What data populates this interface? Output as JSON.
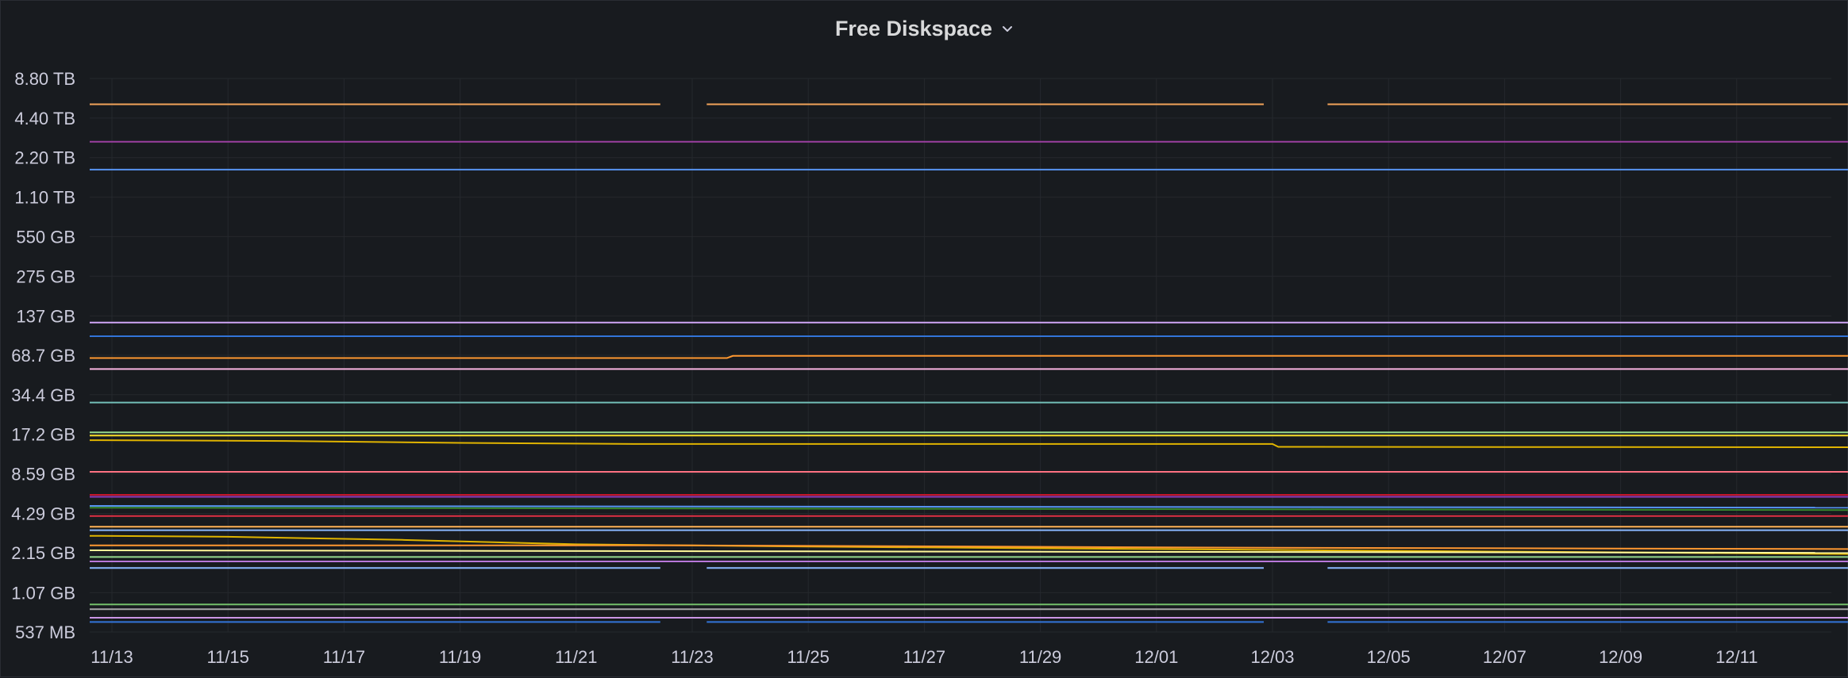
{
  "panel": {
    "title": "Free Diskspace"
  },
  "colors": {
    "background": "#181b1f",
    "grid": "#25282d",
    "text": "#ccccdc"
  },
  "chart_data": {
    "type": "line",
    "title": "Free Diskspace",
    "yscale": "log2",
    "y_unit": "bytes",
    "ylim_bytes": [
      537000000,
      8800000000000
    ],
    "y_ticks": [
      {
        "label": "8.80 TB",
        "value": 8800000000000
      },
      {
        "label": "4.40 TB",
        "value": 4400000000000
      },
      {
        "label": "2.20 TB",
        "value": 2200000000000
      },
      {
        "label": "1.10 TB",
        "value": 1100000000000
      },
      {
        "label": "550 GB",
        "value": 550000000000
      },
      {
        "label": "275 GB",
        "value": 275000000000
      },
      {
        "label": "137 GB",
        "value": 137000000000
      },
      {
        "label": "68.7 GB",
        "value": 68700000000
      },
      {
        "label": "34.4 GB",
        "value": 34400000000
      },
      {
        "label": "17.2 GB",
        "value": 17200000000
      },
      {
        "label": "8.59 GB",
        "value": 8590000000
      },
      {
        "label": "4.29 GB",
        "value": 4290000000
      },
      {
        "label": "2.15 GB",
        "value": 2150000000
      },
      {
        "label": "1.07 GB",
        "value": 1070000000
      },
      {
        "label": "537 MB",
        "value": 537000000
      }
    ],
    "xlim_days": [
      0,
      30.5
    ],
    "x_ticks": [
      {
        "label": "11/13",
        "day": 0
      },
      {
        "label": "11/15",
        "day": 2
      },
      {
        "label": "11/17",
        "day": 4
      },
      {
        "label": "11/19",
        "day": 6
      },
      {
        "label": "11/21",
        "day": 8
      },
      {
        "label": "11/23",
        "day": 10
      },
      {
        "label": "11/25",
        "day": 12
      },
      {
        "label": "11/27",
        "day": 14
      },
      {
        "label": "11/29",
        "day": 16
      },
      {
        "label": "12/01",
        "day": 18
      },
      {
        "label": "12/03",
        "day": 20
      },
      {
        "label": "12/05",
        "day": 22
      },
      {
        "label": "12/07",
        "day": 24
      },
      {
        "label": "12/09",
        "day": 26
      },
      {
        "label": "12/11",
        "day": 28
      }
    ],
    "gaps_days": [
      [
        9.45,
        10.25
      ],
      [
        19.85,
        20.95
      ]
    ],
    "series": [
      {
        "color": "#f2a35a",
        "gaps": true,
        "points": [
          [
            -0.4,
            5600000000000.0
          ],
          [
            30.5,
            5600000000000.0
          ]
        ]
      },
      {
        "color": "#9b3fa0",
        "gaps": false,
        "points": [
          [
            -0.4,
            2900000000000.0
          ],
          [
            30.5,
            2900000000000.0
          ]
        ]
      },
      {
        "color": "#5794f2",
        "gaps": false,
        "points": [
          [
            -0.4,
            1780000000000.0
          ],
          [
            30.5,
            1780000000000.0
          ]
        ]
      },
      {
        "color": "#d0a6f7",
        "gaps": false,
        "points": [
          [
            -0.4,
            122000000000.0
          ],
          [
            30.5,
            122000000000.0
          ]
        ]
      },
      {
        "color": "#3274d9",
        "gaps": false,
        "points": [
          [
            -0.4,
            96000000000.0
          ],
          [
            30.5,
            96000000000.0
          ]
        ]
      },
      {
        "color": "#ff9830",
        "gaps": false,
        "points": [
          [
            -0.4,
            65500000000.0
          ],
          [
            10.6,
            65500000000.0
          ],
          [
            10.7,
            68000000000.0
          ],
          [
            30.5,
            68000000000.0
          ]
        ]
      },
      {
        "color": "#f8b4e0",
        "gaps": false,
        "points": [
          [
            -0.4,
            54000000000.0
          ],
          [
            30.5,
            54000000000.0
          ]
        ]
      },
      {
        "color": "#73bfb8",
        "gaps": false,
        "points": [
          [
            -0.4,
            30000000000.0
          ],
          [
            30.5,
            30000000000.0
          ]
        ]
      },
      {
        "color": "#96d98d",
        "gaps": false,
        "points": [
          [
            -0.4,
            17800000000.0
          ],
          [
            30.5,
            17800000000.0
          ]
        ]
      },
      {
        "color": "#fade2a",
        "gaps": false,
        "points": [
          [
            -0.4,
            16800000000.0
          ],
          [
            30.5,
            16800000000.0
          ]
        ]
      },
      {
        "color": "#e0b400",
        "gaps": false,
        "points": [
          [
            -0.4,
            15500000000.0
          ],
          [
            3,
            15300000000.0
          ],
          [
            6,
            14800000000.0
          ],
          [
            9,
            14500000000.0
          ],
          [
            20,
            14500000000.0
          ],
          [
            20.1,
            13800000000.0
          ],
          [
            30.5,
            13700000000.0
          ]
        ]
      },
      {
        "color": "#ff7383",
        "gaps": false,
        "points": [
          [
            -0.4,
            8900000000.0
          ],
          [
            30.5,
            8900000000.0
          ]
        ]
      },
      {
        "color": "#c4162a",
        "gaps": false,
        "points": [
          [
            -0.4,
            5950000000.0
          ],
          [
            30.5,
            5950000000.0
          ]
        ]
      },
      {
        "color": "#8f3bb8",
        "gaps": false,
        "points": [
          [
            -0.4,
            5750000000.0
          ],
          [
            30.5,
            5750000000.0
          ]
        ]
      },
      {
        "color": "#5794f2",
        "gaps": false,
        "points": [
          [
            -0.4,
            4900000000.0
          ],
          [
            30.5,
            4750000000.0
          ]
        ]
      },
      {
        "color": "#37872d",
        "gaps": false,
        "points": [
          [
            -0.4,
            4750000000.0
          ],
          [
            30.5,
            4550000000.0
          ]
        ]
      },
      {
        "color": "#e02f44",
        "gaps": false,
        "points": [
          [
            -0.4,
            4100000000.0
          ],
          [
            30.5,
            4100000000.0
          ]
        ]
      },
      {
        "color": "#ffb357",
        "gaps": false,
        "points": [
          [
            -0.4,
            3400000000.0
          ],
          [
            30.5,
            3400000000.0
          ]
        ]
      },
      {
        "color": "#8ab8ff",
        "gaps": false,
        "points": [
          [
            -0.4,
            3200000000.0
          ],
          [
            30.5,
            3200000000.0
          ]
        ]
      },
      {
        "color": "#e0b400",
        "gaps": false,
        "points": [
          [
            -0.4,
            2900000000.0
          ],
          [
            2,
            2850000000.0
          ],
          [
            5,
            2700000000.0
          ],
          [
            8,
            2500000000.0
          ],
          [
            12,
            2400000000.0
          ],
          [
            18,
            2300000000.0
          ],
          [
            24,
            2200000000.0
          ],
          [
            30.5,
            2100000000.0
          ]
        ]
      },
      {
        "color": "#ff9830",
        "gaps": false,
        "points": [
          [
            -0.4,
            2450000000.0
          ],
          [
            10,
            2450000000.0
          ],
          [
            20,
            2350000000.0
          ],
          [
            30.5,
            2300000000.0
          ]
        ]
      },
      {
        "color": "#fff899",
        "gaps": false,
        "points": [
          [
            -0.4,
            2250000000.0
          ],
          [
            30.5,
            2150000000.0
          ]
        ]
      },
      {
        "color": "#96d98d",
        "gaps": false,
        "points": [
          [
            -0.4,
            2000000000.0
          ],
          [
            30.5,
            2000000000.0
          ]
        ]
      },
      {
        "color": "#b877d9",
        "gaps": false,
        "points": [
          [
            -0.4,
            1850000000.0
          ],
          [
            30.5,
            1850000000.0
          ]
        ]
      },
      {
        "color": "#8ab8ff",
        "gaps": true,
        "points": [
          [
            -0.4,
            1650000000.0
          ],
          [
            30.5,
            1650000000.0
          ]
        ]
      },
      {
        "color": "#73bf69",
        "gaps": false,
        "points": [
          [
            -0.4,
            870000000.0
          ],
          [
            30.5,
            870000000.0
          ]
        ]
      },
      {
        "color": "#a8a8a8",
        "gaps": false,
        "points": [
          [
            -0.4,
            800000000.0
          ],
          [
            30.5,
            800000000.0
          ]
        ]
      },
      {
        "color": "#ca95e5",
        "gaps": false,
        "points": [
          [
            -0.4,
            690000000.0
          ],
          [
            30.5,
            690000000.0
          ]
        ]
      },
      {
        "color": "#3274d9",
        "gaps": true,
        "points": [
          [
            -0.4,
            640000000.0
          ],
          [
            30.5,
            640000000.0
          ]
        ]
      }
    ]
  }
}
